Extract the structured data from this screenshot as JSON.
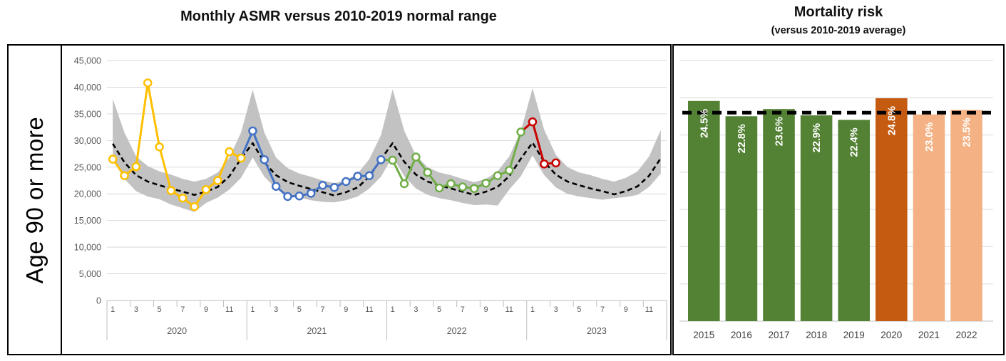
{
  "chart_data": [
    {
      "type": "line",
      "title": "Monthly ASMR versus 2010-2019 normal range",
      "row_label": "Age 90 or more",
      "ylabel": "",
      "ylim": [
        0,
        45000
      ],
      "ytick_step": 5000,
      "grid": true,
      "month_ticks": [
        "1",
        "3",
        "5",
        "7",
        "9",
        "11"
      ],
      "years": [
        "2020",
        "2021",
        "2022",
        "2023"
      ],
      "band": {
        "name": "2010-2019 normal range",
        "color": "#c2c2c2",
        "upper": [
          37800,
          31500,
          27000,
          25200,
          24200,
          23600,
          22800,
          22300,
          22800,
          24000,
          26800,
          31500,
          39500,
          31500,
          26800,
          24800,
          23800,
          23200,
          22500,
          22000,
          22500,
          23800,
          26500,
          31000,
          39600,
          31800,
          27200,
          25000,
          24000,
          23500,
          22800,
          22200,
          22800,
          24200,
          27000,
          31800,
          39800,
          32000,
          27300,
          25000,
          24000,
          23500,
          22800,
          22300,
          23000,
          24200,
          27000,
          32000
        ],
        "lower": [
          26300,
          22800,
          20500,
          19500,
          19000,
          18000,
          17300,
          16600,
          18300,
          19300,
          20800,
          23000,
          26800,
          23200,
          21000,
          19800,
          19300,
          18800,
          18500,
          18400,
          18800,
          19500,
          21000,
          23200,
          27000,
          23300,
          21000,
          19800,
          19200,
          18800,
          18300,
          17900,
          18000,
          17800,
          20800,
          23300,
          27200,
          23500,
          21200,
          20000,
          19500,
          19200,
          18900,
          19200,
          19400,
          19800,
          21300,
          23800
        ]
      },
      "average": {
        "name": "2010-2019 average",
        "color": "#000000",
        "style": "dashed",
        "values": [
          29400,
          25900,
          23500,
          22300,
          21600,
          21000,
          20400,
          19800,
          20400,
          21300,
          23300,
          26600,
          29500,
          25900,
          23500,
          22200,
          21500,
          20900,
          20300,
          19700,
          20300,
          21200,
          23200,
          26500,
          29500,
          26000,
          23600,
          22300,
          21600,
          21000,
          20400,
          19800,
          20400,
          21300,
          23300,
          26600,
          29600,
          26000,
          23600,
          22300,
          21600,
          21000,
          20500,
          19900,
          20500,
          21400,
          23400,
          26700
        ]
      },
      "series": [
        {
          "name": "2020",
          "color": "#FFC000",
          "start_index": 0,
          "values": [
            26500,
            23400,
            25100,
            40800,
            28800,
            20600,
            19200,
            17600,
            20800,
            22500,
            27900,
            26700
          ]
        },
        {
          "name": "2021",
          "color": "#4472C4",
          "start_index": 12,
          "values": [
            31800,
            26400,
            21400,
            19500,
            19600,
            20100,
            21600,
            21200,
            22300,
            23300,
            23400,
            26400
          ]
        },
        {
          "name": "2022",
          "color": "#70AD47",
          "start_index": 24,
          "values": [
            26300,
            21900,
            26900,
            24000,
            21100,
            21900,
            21300,
            21000,
            22000,
            23400,
            24400,
            31600
          ]
        },
        {
          "name": "2023",
          "color": "#C80000",
          "start_index": 36,
          "values": [
            33500,
            25600,
            25800
          ]
        }
      ]
    },
    {
      "type": "bar",
      "title": "Mortality risk",
      "subtitle": "(versus 2010-2019 average)",
      "categories": [
        "2015",
        "2016",
        "2017",
        "2018",
        "2019",
        "2020",
        "2021",
        "2022"
      ],
      "values": [
        24.5,
        22.8,
        23.6,
        22.9,
        22.4,
        24.8,
        23.0,
        23.5
      ],
      "labels": [
        "24.5%",
        "22.8%",
        "23.6%",
        "22.9%",
        "22.4%",
        "24.8%",
        "23.0%",
        "23.5%"
      ],
      "bar_colors": [
        "#548235",
        "#548235",
        "#548235",
        "#548235",
        "#548235",
        "#C55A11",
        "#F4B183",
        "#F4B183"
      ],
      "label_color": "#ffffff",
      "average_line": 23.2,
      "average_line_color": "#000000",
      "ylim": [
        0,
        29
      ],
      "grid": true,
      "legend": "none"
    }
  ],
  "theme": {
    "grid_color": "#d9d9d9",
    "axis_color": "#bfbfbf",
    "tick_text_color": "#595959",
    "category_text_color": "#404040"
  }
}
